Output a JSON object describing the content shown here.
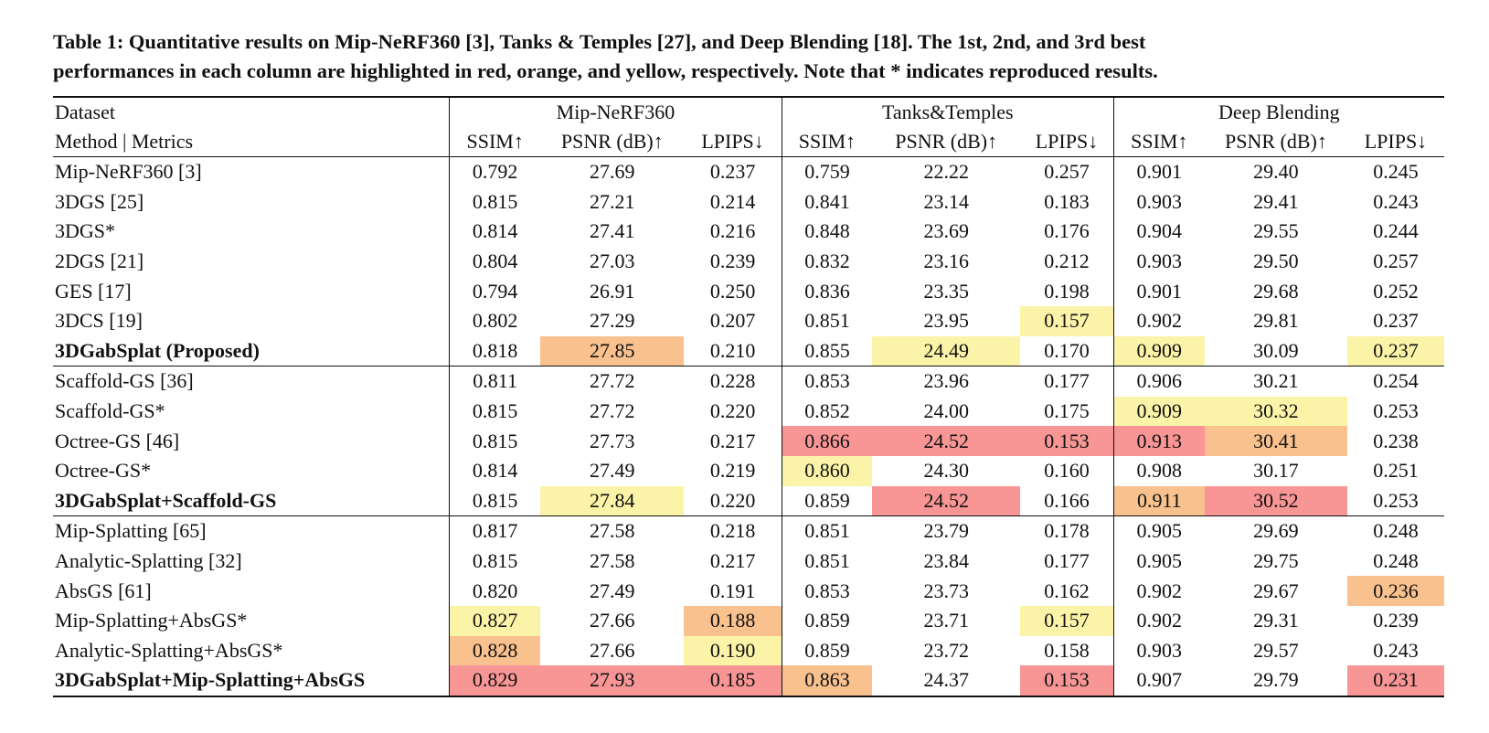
{
  "caption": {
    "line1": "Table 1: Quantitative results on Mip-NeRF360 [3], Tanks & Temples [27], and Deep Blending [18]. The 1st, 2nd, and 3rd best",
    "line2": "performances in each column are highlighted in red, orange, and yellow, respectively. Note that * indicates reproduced results."
  },
  "highlight_colors": {
    "first": "#f89595",
    "second": "#f8c18e",
    "third": "#fbf4a8"
  },
  "header": {
    "row1_label": "Dataset",
    "row2_label": "Method | Metrics",
    "datasets": [
      "Mip-NeRF360",
      "Tanks&Temples",
      "Deep Blending"
    ],
    "metrics": [
      "SSIM↑",
      "PSNR (dB)↑",
      "LPIPS↓",
      "SSIM↑",
      "PSNR (dB)↑",
      "LPIPS↓",
      "SSIM↑",
      "PSNR (dB)↑",
      "LPIPS↓"
    ]
  },
  "rows": [
    {
      "method": "Mip-NeRF360 [3]",
      "bold": false,
      "values": [
        "0.792",
        "27.69",
        "0.237",
        "0.759",
        "22.22",
        "0.257",
        "0.901",
        "29.40",
        "0.245"
      ],
      "hl": [
        "",
        "",
        "",
        "",
        "",
        "",
        "",
        "",
        ""
      ]
    },
    {
      "method": "3DGS [25]",
      "bold": false,
      "values": [
        "0.815",
        "27.21",
        "0.214",
        "0.841",
        "23.14",
        "0.183",
        "0.903",
        "29.41",
        "0.243"
      ],
      "hl": [
        "",
        "",
        "",
        "",
        "",
        "",
        "",
        "",
        ""
      ]
    },
    {
      "method": "3DGS*",
      "bold": false,
      "values": [
        "0.814",
        "27.41",
        "0.216",
        "0.848",
        "23.69",
        "0.176",
        "0.904",
        "29.55",
        "0.244"
      ],
      "hl": [
        "",
        "",
        "",
        "",
        "",
        "",
        "",
        "",
        ""
      ]
    },
    {
      "method": "2DGS [21]",
      "bold": false,
      "values": [
        "0.804",
        "27.03",
        "0.239",
        "0.832",
        "23.16",
        "0.212",
        "0.903",
        "29.50",
        "0.257"
      ],
      "hl": [
        "",
        "",
        "",
        "",
        "",
        "",
        "",
        "",
        ""
      ]
    },
    {
      "method": "GES [17]",
      "bold": false,
      "values": [
        "0.794",
        "26.91",
        "0.250",
        "0.836",
        "23.35",
        "0.198",
        "0.901",
        "29.68",
        "0.252"
      ],
      "hl": [
        "",
        "",
        "",
        "",
        "",
        "",
        "",
        "",
        ""
      ]
    },
    {
      "method": "3DCS [19]",
      "bold": false,
      "values": [
        "0.802",
        "27.29",
        "0.207",
        "0.851",
        "23.95",
        "0.157",
        "0.902",
        "29.81",
        "0.237"
      ],
      "hl": [
        "",
        "",
        "",
        "",
        "",
        "r3",
        "",
        "",
        ""
      ]
    },
    {
      "method": "3DGabSplat (Proposed)",
      "bold": true,
      "groupEnd": true,
      "values": [
        "0.818",
        "27.85",
        "0.210",
        "0.855",
        "24.49",
        "0.170",
        "0.909",
        "30.09",
        "0.237"
      ],
      "hl": [
        "",
        "r2",
        "",
        "",
        "r3",
        "",
        "r3",
        "",
        "r3"
      ]
    },
    {
      "method": "Scaffold-GS [36]",
      "bold": false,
      "values": [
        "0.811",
        "27.72",
        "0.228",
        "0.853",
        "23.96",
        "0.177",
        "0.906",
        "30.21",
        "0.254"
      ],
      "hl": [
        "",
        "",
        "",
        "",
        "",
        "",
        "",
        "",
        ""
      ]
    },
    {
      "method": "Scaffold-GS*",
      "bold": false,
      "values": [
        "0.815",
        "27.72",
        "0.220",
        "0.852",
        "24.00",
        "0.175",
        "0.909",
        "30.32",
        "0.253"
      ],
      "hl": [
        "",
        "",
        "",
        "",
        "",
        "",
        "r3",
        "r3",
        ""
      ]
    },
    {
      "method": "Octree-GS [46]",
      "bold": false,
      "values": [
        "0.815",
        "27.73",
        "0.217",
        "0.866",
        "24.52",
        "0.153",
        "0.913",
        "30.41",
        "0.238"
      ],
      "hl": [
        "",
        "",
        "",
        "r1",
        "r1",
        "r1",
        "r1",
        "r2",
        ""
      ]
    },
    {
      "method": "Octree-GS*",
      "bold": false,
      "values": [
        "0.814",
        "27.49",
        "0.219",
        "0.860",
        "24.30",
        "0.160",
        "0.908",
        "30.17",
        "0.251"
      ],
      "hl": [
        "",
        "",
        "",
        "r3",
        "",
        "",
        "",
        "",
        ""
      ]
    },
    {
      "method": "3DGabSplat+Scaffold-GS",
      "bold": true,
      "groupEnd": true,
      "values": [
        "0.815",
        "27.84",
        "0.220",
        "0.859",
        "24.52",
        "0.166",
        "0.911",
        "30.52",
        "0.253"
      ],
      "hl": [
        "",
        "r3",
        "",
        "",
        "r1",
        "",
        "r2",
        "r1",
        ""
      ]
    },
    {
      "method": "Mip-Splatting [65]",
      "bold": false,
      "values": [
        "0.817",
        "27.58",
        "0.218",
        "0.851",
        "23.79",
        "0.178",
        "0.905",
        "29.69",
        "0.248"
      ],
      "hl": [
        "",
        "",
        "",
        "",
        "",
        "",
        "",
        "",
        ""
      ]
    },
    {
      "method": "Analytic-Splatting [32]",
      "bold": false,
      "values": [
        "0.815",
        "27.58",
        "0.217",
        "0.851",
        "23.84",
        "0.177",
        "0.905",
        "29.75",
        "0.248"
      ],
      "hl": [
        "",
        "",
        "",
        "",
        "",
        "",
        "",
        "",
        ""
      ]
    },
    {
      "method": "AbsGS [61]",
      "bold": false,
      "values": [
        "0.820",
        "27.49",
        "0.191",
        "0.853",
        "23.73",
        "0.162",
        "0.902",
        "29.67",
        "0.236"
      ],
      "hl": [
        "",
        "",
        "",
        "",
        "",
        "",
        "",
        "",
        "r2"
      ]
    },
    {
      "method": "Mip-Splatting+AbsGS*",
      "bold": false,
      "values": [
        "0.827",
        "27.66",
        "0.188",
        "0.859",
        "23.71",
        "0.157",
        "0.902",
        "29.31",
        "0.239"
      ],
      "hl": [
        "r3",
        "",
        "r2",
        "",
        "",
        "r3",
        "",
        "",
        ""
      ]
    },
    {
      "method": "Analytic-Splatting+AbsGS*",
      "bold": false,
      "values": [
        "0.828",
        "27.66",
        "0.190",
        "0.859",
        "23.72",
        "0.158",
        "0.903",
        "29.57",
        "0.243"
      ],
      "hl": [
        "r2",
        "",
        "r3",
        "",
        "",
        "",
        "",
        "",
        ""
      ]
    },
    {
      "method": "3DGabSplat+Mip-Splatting+AbsGS",
      "bold": true,
      "values": [
        "0.829",
        "27.93",
        "0.185",
        "0.863",
        "24.37",
        "0.153",
        "0.907",
        "29.79",
        "0.231"
      ],
      "hl": [
        "r1",
        "r1",
        "r1",
        "r2",
        "",
        "r1",
        "",
        "",
        "r1"
      ]
    }
  ]
}
